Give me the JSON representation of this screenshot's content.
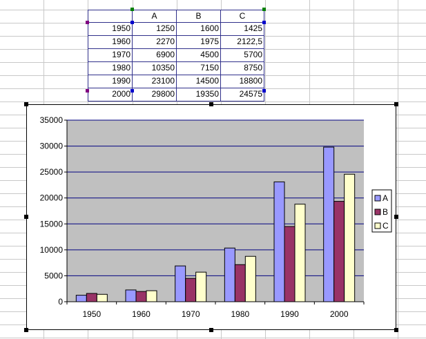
{
  "sheet": {
    "columns": [
      "A",
      "B",
      "C"
    ],
    "rows": [
      {
        "year": "1950",
        "a": "1250",
        "b": "1600",
        "c": "1425"
      },
      {
        "year": "1960",
        "a": "2270",
        "b": "1975",
        "c": "2122,5"
      },
      {
        "year": "1970",
        "a": "6900",
        "b": "4500",
        "c": "5700"
      },
      {
        "year": "1980",
        "a": "10350",
        "b": "7150",
        "c": "8750"
      },
      {
        "year": "1990",
        "a": "23100",
        "b": "14500",
        "c": "18800"
      },
      {
        "year": "2000",
        "a": "29800",
        "b": "19350",
        "c": "24575"
      }
    ]
  },
  "chart_data": {
    "type": "bar",
    "categories": [
      "1950",
      "1960",
      "1970",
      "1980",
      "1990",
      "2000"
    ],
    "series": [
      {
        "name": "A",
        "values": [
          1250,
          2270,
          6900,
          10350,
          23100,
          29800
        ],
        "color": "#9999ff"
      },
      {
        "name": "B",
        "values": [
          1600,
          1975,
          4500,
          7150,
          14500,
          19350
        ],
        "color": "#993366"
      },
      {
        "name": "C",
        "values": [
          1425,
          2122.5,
          5700,
          8750,
          18800,
          24575
        ],
        "color": "#ffffcc"
      }
    ],
    "ylim": [
      0,
      35000
    ],
    "yticks": [
      "0",
      "5000",
      "10000",
      "15000",
      "20000",
      "25000",
      "30000",
      "35000"
    ],
    "plot_background": "#c0c0c0",
    "gridline_color": "#000080",
    "grid": true,
    "legend_position": "right"
  }
}
